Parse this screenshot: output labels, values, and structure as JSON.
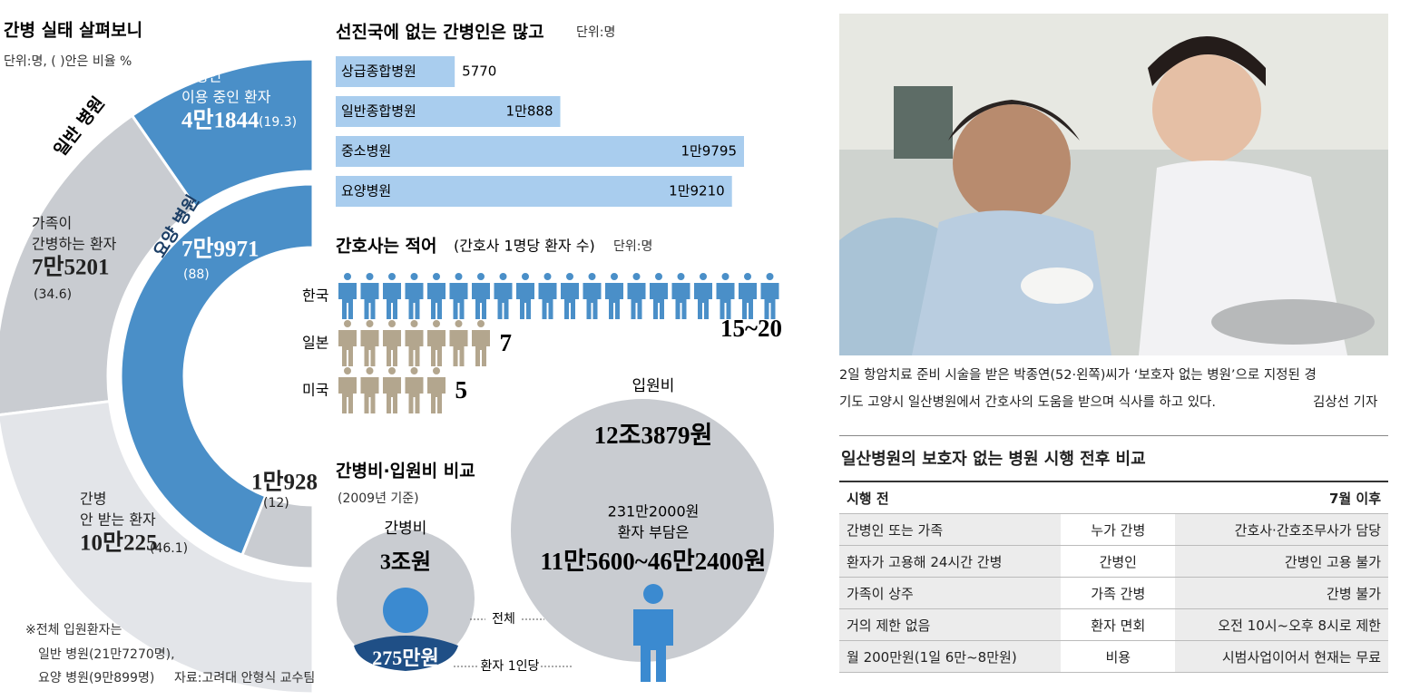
{
  "infographic": {
    "title": "간병 실태 살펴보니",
    "unit": "단위:명, ( )안은 비율 %",
    "ring_general_label": "일반 병원",
    "ring_nursing_label": "요양 병원",
    "general": [
      {
        "lines": [
          "간병인",
          "이용 중인 환자"
        ],
        "value_label": "4만1844",
        "pct": {
          "value": 19.3,
          "label": "(19.3)"
        },
        "color": "#4a8fc8"
      },
      {
        "lines": [
          "가족이",
          "간병하는 환자"
        ],
        "value_label": "7만5201",
        "pct": {
          "value": 34.6,
          "label": "(34.6)"
        },
        "color": "#c9ccd1"
      },
      {
        "lines": [
          "간병",
          "안 받는 환자"
        ],
        "value_label": "10만225",
        "pct": {
          "value": 46.1,
          "label": "(46.1)"
        },
        "color": "#e3e5e9"
      }
    ],
    "nursing": [
      {
        "value_label": "7만9971",
        "pct": {
          "value": 88,
          "label": "(88)"
        },
        "color": "#4a8fc8"
      },
      {
        "value_label": "1만928",
        "pct": {
          "value": 12,
          "label": "(12)"
        },
        "color": "#c9ccd1"
      }
    ],
    "note": [
      "※전체 입원환자는",
      "일반 병원(21만7270명),",
      "요양 병원(9만899명)"
    ],
    "source": "자료:고려대 안형식 교수팀",
    "bars": {
      "title": "선진국에 없는 간병인은 많고",
      "unit": "단위:명",
      "categories": [
        "상급종합병원",
        "일반종합병원",
        "중소병원",
        "요양병원"
      ],
      "values": [
        5770,
        10888,
        19795,
        19210
      ],
      "value_labels": [
        "5770",
        "1만888",
        "1만9795",
        "1만9210"
      ],
      "color": "#a9cdee"
    },
    "nurses": {
      "title": "간호사는 적어",
      "subtitle": "(간호사 1명당 환자 수)",
      "unit": "단위:명",
      "rows": [
        {
          "country": "한국",
          "low": 15,
          "high": 20,
          "label": "15~20",
          "color": "#4a8fc8"
        },
        {
          "country": "일본",
          "value": 7,
          "color": "#b3a68e"
        },
        {
          "country": "미국",
          "value": 5,
          "color": "#b3a68e"
        }
      ]
    },
    "cost": {
      "title": "간병비·입원비 비교",
      "subtitle": "(2009년 기준)",
      "admission": {
        "label": "입원비",
        "total": "12조3879원",
        "patient_total": "231만2000원",
        "patient_label": "환자 부담은",
        "per_person": "11만5600~46만2400원"
      },
      "care": {
        "label": "간병비",
        "total": "3조원",
        "per_person": "275만원"
      },
      "legend_total": "전체",
      "legend_per": "환자 1인당"
    }
  },
  "photo": {
    "caption": [
      "2일 항암치료 준비 시술을 받은 박종연(52·왼쪽)씨가 ‘보호자 없는 병원’으로 지정된 경",
      "기도 고양시 일산병원에서 간호사의 도움을 받으며 식사를 하고 있다."
    ],
    "credit": "김상선 기자"
  },
  "table": {
    "title": "일산병원의 보호자 없는 병원 시행 전후 비교",
    "before": "시행 전",
    "after": "7월 이후",
    "rows": [
      [
        "간병인 또는 가족",
        "누가 간병",
        "간호사·간호조무사가 담당"
      ],
      [
        "환자가 고용해 24시간 간병",
        "간병인",
        "간병인 고용 불가"
      ],
      [
        "가족이 상주",
        "가족 간병",
        "간병 불가"
      ],
      [
        "거의 제한 없음",
        "환자 면회",
        "오전 10시~오후 8시로 제한"
      ],
      [
        "월 200만원(1일 6만~8만원)",
        "비용",
        "시범사업이어서 현재는 무료"
      ]
    ]
  }
}
